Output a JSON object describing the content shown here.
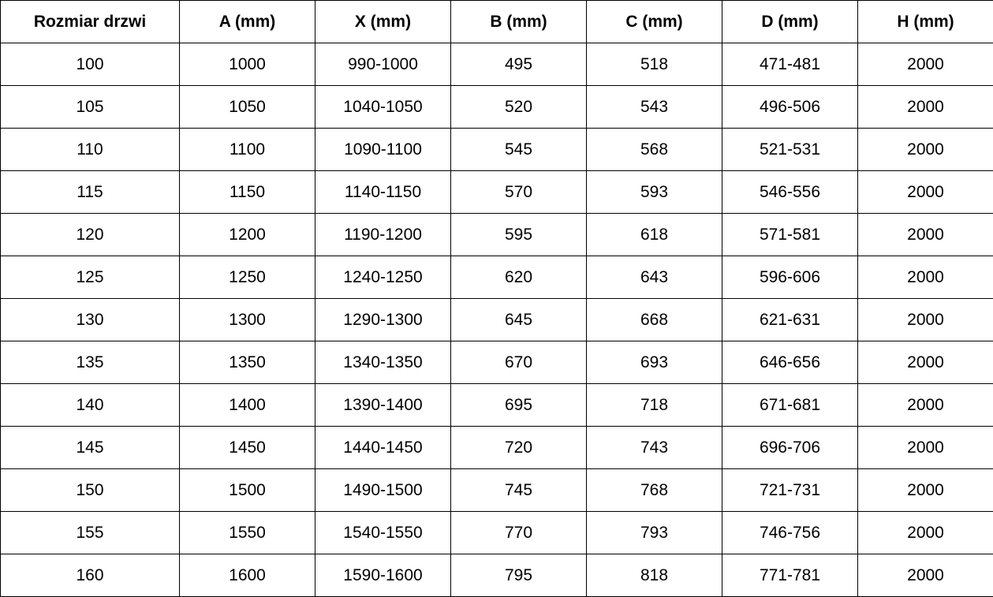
{
  "table": {
    "headers": [
      "Rozmiar drzwi",
      "A (mm)",
      "X (mm)",
      "B (mm)",
      "C (mm)",
      "D (mm)",
      "H (mm)"
    ],
    "rows": [
      [
        "100",
        "1000",
        "990-1000",
        "495",
        "518",
        "471-481",
        "2000"
      ],
      [
        "105",
        "1050",
        "1040-1050",
        "520",
        "543",
        "496-506",
        "2000"
      ],
      [
        "110",
        "1100",
        "1090-1100",
        "545",
        "568",
        "521-531",
        "2000"
      ],
      [
        "115",
        "1150",
        "1140-1150",
        "570",
        "593",
        "546-556",
        "2000"
      ],
      [
        "120",
        "1200",
        "1190-1200",
        "595",
        "618",
        "571-581",
        "2000"
      ],
      [
        "125",
        "1250",
        "1240-1250",
        "620",
        "643",
        "596-606",
        "2000"
      ],
      [
        "130",
        "1300",
        "1290-1300",
        "645",
        "668",
        "621-631",
        "2000"
      ],
      [
        "135",
        "1350",
        "1340-1350",
        "670",
        "693",
        "646-656",
        "2000"
      ],
      [
        "140",
        "1400",
        "1390-1400",
        "695",
        "718",
        "671-681",
        "2000"
      ],
      [
        "145",
        "1450",
        "1440-1450",
        "720",
        "743",
        "696-706",
        "2000"
      ],
      [
        "150",
        "1500",
        "1490-1500",
        "745",
        "768",
        "721-731",
        "2000"
      ],
      [
        "155",
        "1550",
        "1540-1550",
        "770",
        "793",
        "746-756",
        "2000"
      ],
      [
        "160",
        "1600",
        "1590-1600",
        "795",
        "818",
        "771-781",
        "2000"
      ]
    ]
  }
}
